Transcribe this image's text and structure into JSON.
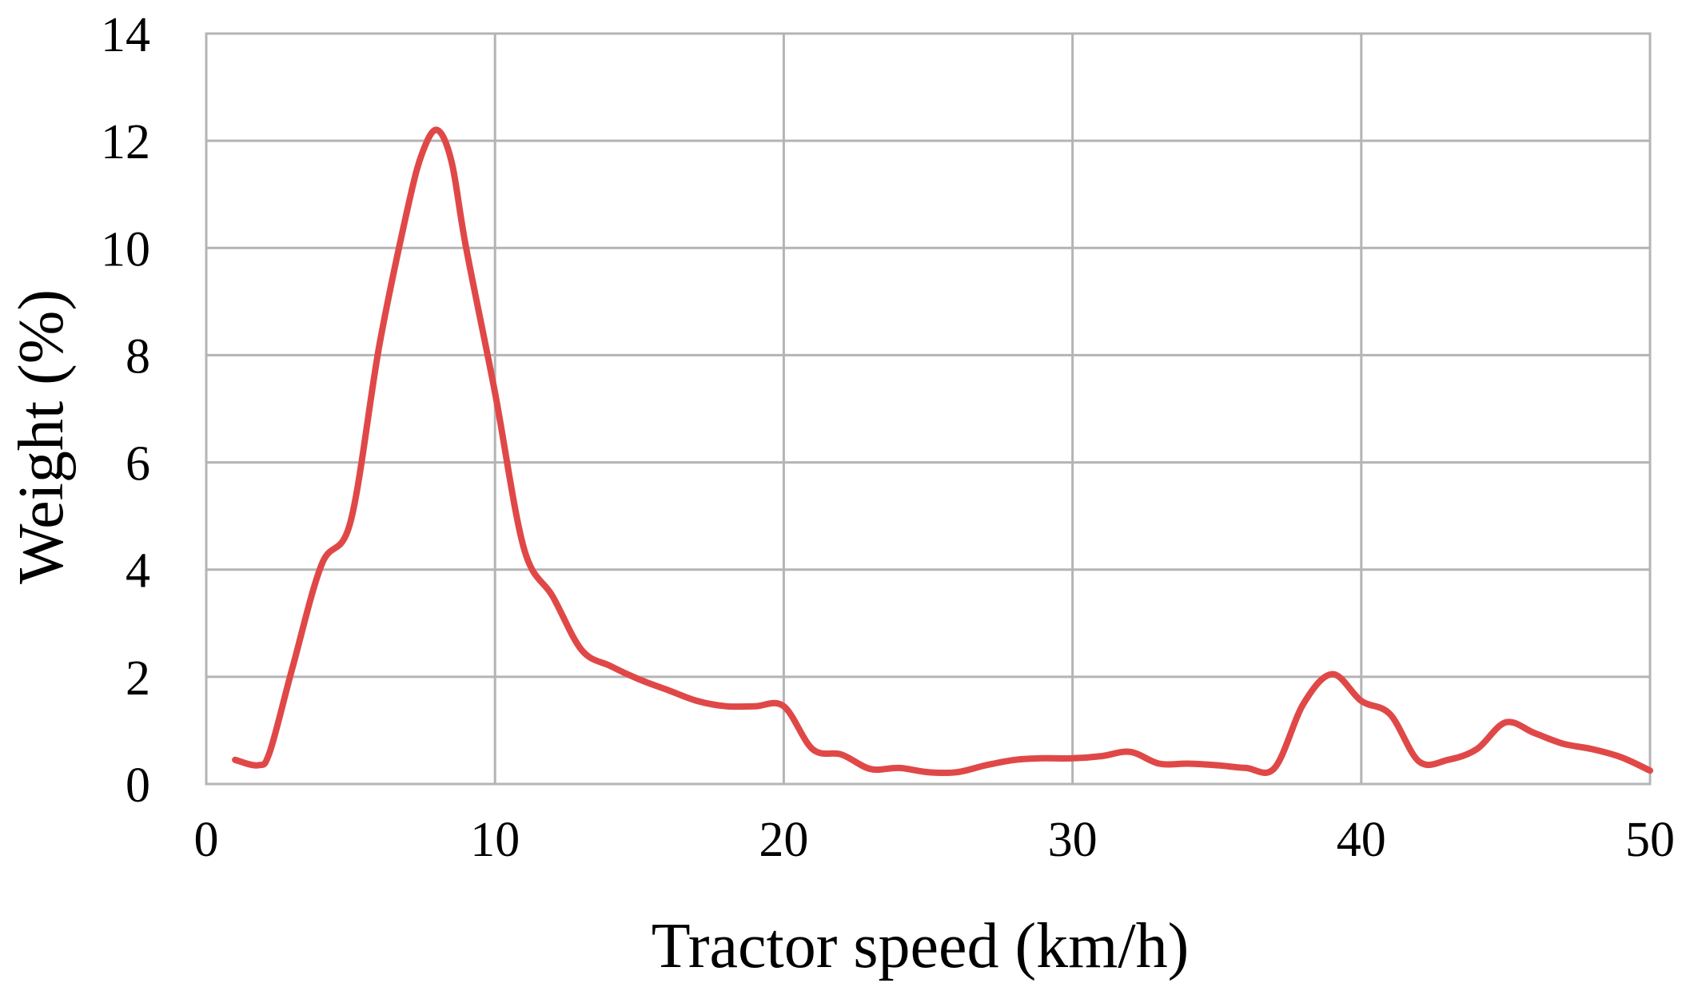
{
  "chart_data": {
    "type": "line",
    "title": "",
    "xlabel": "Tractor speed (km/h)",
    "ylabel": "Weight (%)",
    "xlim": [
      0,
      50
    ],
    "ylim": [
      0,
      14
    ],
    "x_ticks": [
      "0",
      "10",
      "20",
      "30",
      "40",
      "50"
    ],
    "y_ticks": [
      "0",
      "2",
      "4",
      "6",
      "8",
      "10",
      "12",
      "14"
    ],
    "grid": true,
    "legend": "none",
    "line_color": "#e04848",
    "series": [
      {
        "x": [
          1,
          1.8,
          2.2,
          3,
          4,
          5,
          6,
          7,
          7.5,
          8,
          8.5,
          9,
          10,
          11,
          12,
          13,
          14,
          15,
          16,
          17,
          18,
          19,
          20,
          21,
          22,
          23,
          24,
          25,
          26,
          27,
          28,
          29,
          30,
          31,
          32,
          33,
          34,
          35,
          36,
          37,
          38,
          39,
          40,
          41,
          42,
          43,
          44,
          45,
          46,
          47,
          48,
          49,
          50
        ],
        "y": [
          0.45,
          0.35,
          0.6,
          2.2,
          4.1,
          4.9,
          8.2,
          10.8,
          11.8,
          12.2,
          11.6,
          10.0,
          7.3,
          4.4,
          3.5,
          2.5,
          2.2,
          1.95,
          1.75,
          1.55,
          1.45,
          1.45,
          1.45,
          0.65,
          0.55,
          0.28,
          0.3,
          0.22,
          0.22,
          0.35,
          0.45,
          0.48,
          0.48,
          0.52,
          0.6,
          0.38,
          0.38,
          0.35,
          0.3,
          0.3,
          1.5,
          2.05,
          1.55,
          1.3,
          0.42,
          0.45,
          0.65,
          1.15,
          0.95,
          0.75,
          0.65,
          0.5,
          0.25
        ]
      }
    ]
  }
}
